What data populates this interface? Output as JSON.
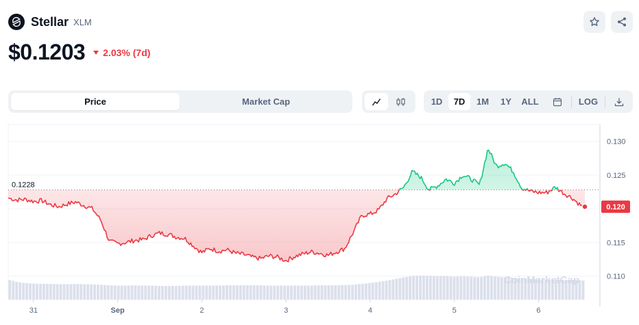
{
  "coin": {
    "name": "Stellar",
    "symbol": "XLM",
    "price": "$0.1203",
    "change": "2.03% (7d)",
    "change_direction": "down"
  },
  "actions": {
    "star_icon": "star-icon",
    "share_icon": "share-icon"
  },
  "chart_type_toggle": {
    "options": [
      "Price",
      "Market Cap"
    ],
    "selected": "Price"
  },
  "chart_style_toggle": {
    "options": [
      "line-chart-icon",
      "candlestick-icon"
    ],
    "selected": "line-chart-icon"
  },
  "range_toggle": {
    "options": [
      "1D",
      "7D",
      "1M",
      "1Y",
      "ALL"
    ],
    "selected": "7D",
    "calendar_icon": "calendar-icon",
    "log_label": "LOG",
    "download_icon": "download-icon"
  },
  "watermark": "CoinMarketCap",
  "colors": {
    "up": "#16c784",
    "down": "#ea3943",
    "text_primary": "#0d1421",
    "text_secondary": "#58667e",
    "toggle_bg": "#eff2f5",
    "volume": "#cfd6e4"
  },
  "chart_data": {
    "type": "line",
    "title": "",
    "xlabel": "",
    "ylabel": "",
    "x_ticks": [
      "31",
      "Sep",
      "2",
      "3",
      "4",
      "5",
      "6"
    ],
    "y_ticks": [
      0.11,
      0.115,
      0.12,
      0.125,
      0.13
    ],
    "y_tick_labels": [
      "0.110",
      "0.115",
      "0.120",
      "0.125",
      "0.130"
    ],
    "ylim": [
      0.1065,
      0.1325
    ],
    "x_range_days": [
      30.7,
      37.55
    ],
    "reference_value": 0.1228,
    "reference_label": "0.1228",
    "current_value": 0.1203,
    "current_label": "0.120",
    "grid": true,
    "x_days": [
      30.7,
      30.8,
      30.9,
      31.0,
      31.1,
      31.2,
      31.3,
      31.4,
      31.5,
      31.6,
      31.7,
      31.8,
      31.9,
      32.0,
      32.1,
      32.2,
      32.3,
      32.4,
      32.5,
      32.6,
      32.7,
      32.8,
      32.9,
      33.0,
      33.1,
      33.2,
      33.3,
      33.4,
      33.5,
      33.6,
      33.7,
      33.8,
      33.9,
      34.0,
      34.1,
      34.2,
      34.3,
      34.4,
      34.5,
      34.6,
      34.7,
      34.8,
      34.9,
      35.0,
      35.1,
      35.2,
      35.3,
      35.4,
      35.5,
      35.6,
      35.7,
      35.8,
      35.9,
      36.0,
      36.1,
      36.2,
      36.3,
      36.4,
      36.5,
      36.6,
      36.7,
      36.8,
      36.9,
      37.0,
      37.1,
      37.2,
      37.3,
      37.4,
      37.5,
      37.55
    ],
    "prices": [
      0.1216,
      0.1213,
      0.1214,
      0.1211,
      0.1212,
      0.1206,
      0.1203,
      0.1207,
      0.121,
      0.1205,
      0.12,
      0.1183,
      0.1152,
      0.1148,
      0.115,
      0.1153,
      0.1154,
      0.116,
      0.1164,
      0.1162,
      0.1158,
      0.1156,
      0.1145,
      0.1135,
      0.1141,
      0.1137,
      0.1139,
      0.1134,
      0.1132,
      0.1128,
      0.1126,
      0.113,
      0.1128,
      0.1123,
      0.1129,
      0.1133,
      0.1136,
      0.1134,
      0.1131,
      0.1136,
      0.1141,
      0.1165,
      0.119,
      0.1192,
      0.1198,
      0.1215,
      0.1222,
      0.1232,
      0.1255,
      0.1247,
      0.1228,
      0.1234,
      0.1244,
      0.1238,
      0.125,
      0.1244,
      0.1235,
      0.129,
      0.1263,
      0.1268,
      0.1255,
      0.1231,
      0.1226,
      0.1224,
      0.1224,
      0.1232,
      0.1223,
      0.1216,
      0.1205,
      0.1203
    ],
    "volume": [
      0.7,
      0.62,
      0.58,
      0.56,
      0.55,
      0.55,
      0.54,
      0.54,
      0.55,
      0.54,
      0.53,
      0.52,
      0.5,
      0.49,
      0.49,
      0.5,
      0.49,
      0.49,
      0.48,
      0.48,
      0.48,
      0.49,
      0.49,
      0.49,
      0.49,
      0.49,
      0.5,
      0.5,
      0.5,
      0.5,
      0.5,
      0.49,
      0.49,
      0.49,
      0.49,
      0.49,
      0.49,
      0.5,
      0.5,
      0.5,
      0.51,
      0.52,
      0.55,
      0.58,
      0.62,
      0.66,
      0.72,
      0.78,
      0.82,
      0.84,
      0.83,
      0.82,
      0.82,
      0.8,
      0.82,
      0.8,
      0.78,
      0.84,
      0.8,
      0.78,
      0.76,
      0.74,
      0.72,
      0.71,
      0.7,
      0.7,
      0.69,
      0.69,
      0.68,
      0.66
    ]
  }
}
